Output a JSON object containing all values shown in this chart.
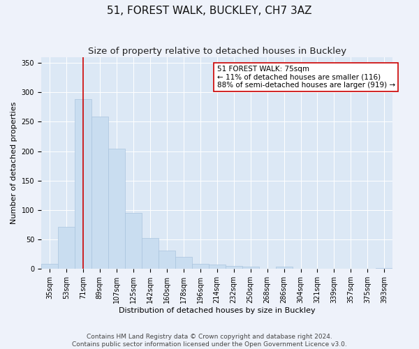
{
  "title": "51, FOREST WALK, BUCKLEY, CH7 3AZ",
  "subtitle": "Size of property relative to detached houses in Buckley",
  "xlabel": "Distribution of detached houses by size in Buckley",
  "ylabel": "Number of detached properties",
  "categories": [
    "35sqm",
    "53sqm",
    "71sqm",
    "89sqm",
    "107sqm",
    "125sqm",
    "142sqm",
    "160sqm",
    "178sqm",
    "196sqm",
    "214sqm",
    "232sqm",
    "250sqm",
    "268sqm",
    "286sqm",
    "304sqm",
    "321sqm",
    "339sqm",
    "357sqm",
    "375sqm",
    "393sqm"
  ],
  "values": [
    9,
    71,
    288,
    259,
    204,
    95,
    52,
    31,
    20,
    9,
    8,
    5,
    4,
    0,
    4,
    0,
    0,
    0,
    0,
    0,
    2
  ],
  "bar_color": "#c9ddf0",
  "bar_edge_color": "#aac4de",
  "vline_x": 2,
  "vline_color": "#cc0000",
  "annotation_text": "51 FOREST WALK: 75sqm\n← 11% of detached houses are smaller (116)\n88% of semi-detached houses are larger (919) →",
  "annotation_box_color": "#ffffff",
  "annotation_box_edge_color": "#cc0000",
  "ylim": [
    0,
    360
  ],
  "yticks": [
    0,
    50,
    100,
    150,
    200,
    250,
    300,
    350
  ],
  "footer_text": "Contains HM Land Registry data © Crown copyright and database right 2024.\nContains public sector information licensed under the Open Government Licence v3.0.",
  "background_color": "#eef2fa",
  "plot_background_color": "#dce8f5",
  "grid_color": "#ffffff",
  "title_fontsize": 11,
  "subtitle_fontsize": 9.5,
  "axis_label_fontsize": 8,
  "tick_fontsize": 7,
  "annotation_fontsize": 7.5,
  "footer_fontsize": 6.5
}
